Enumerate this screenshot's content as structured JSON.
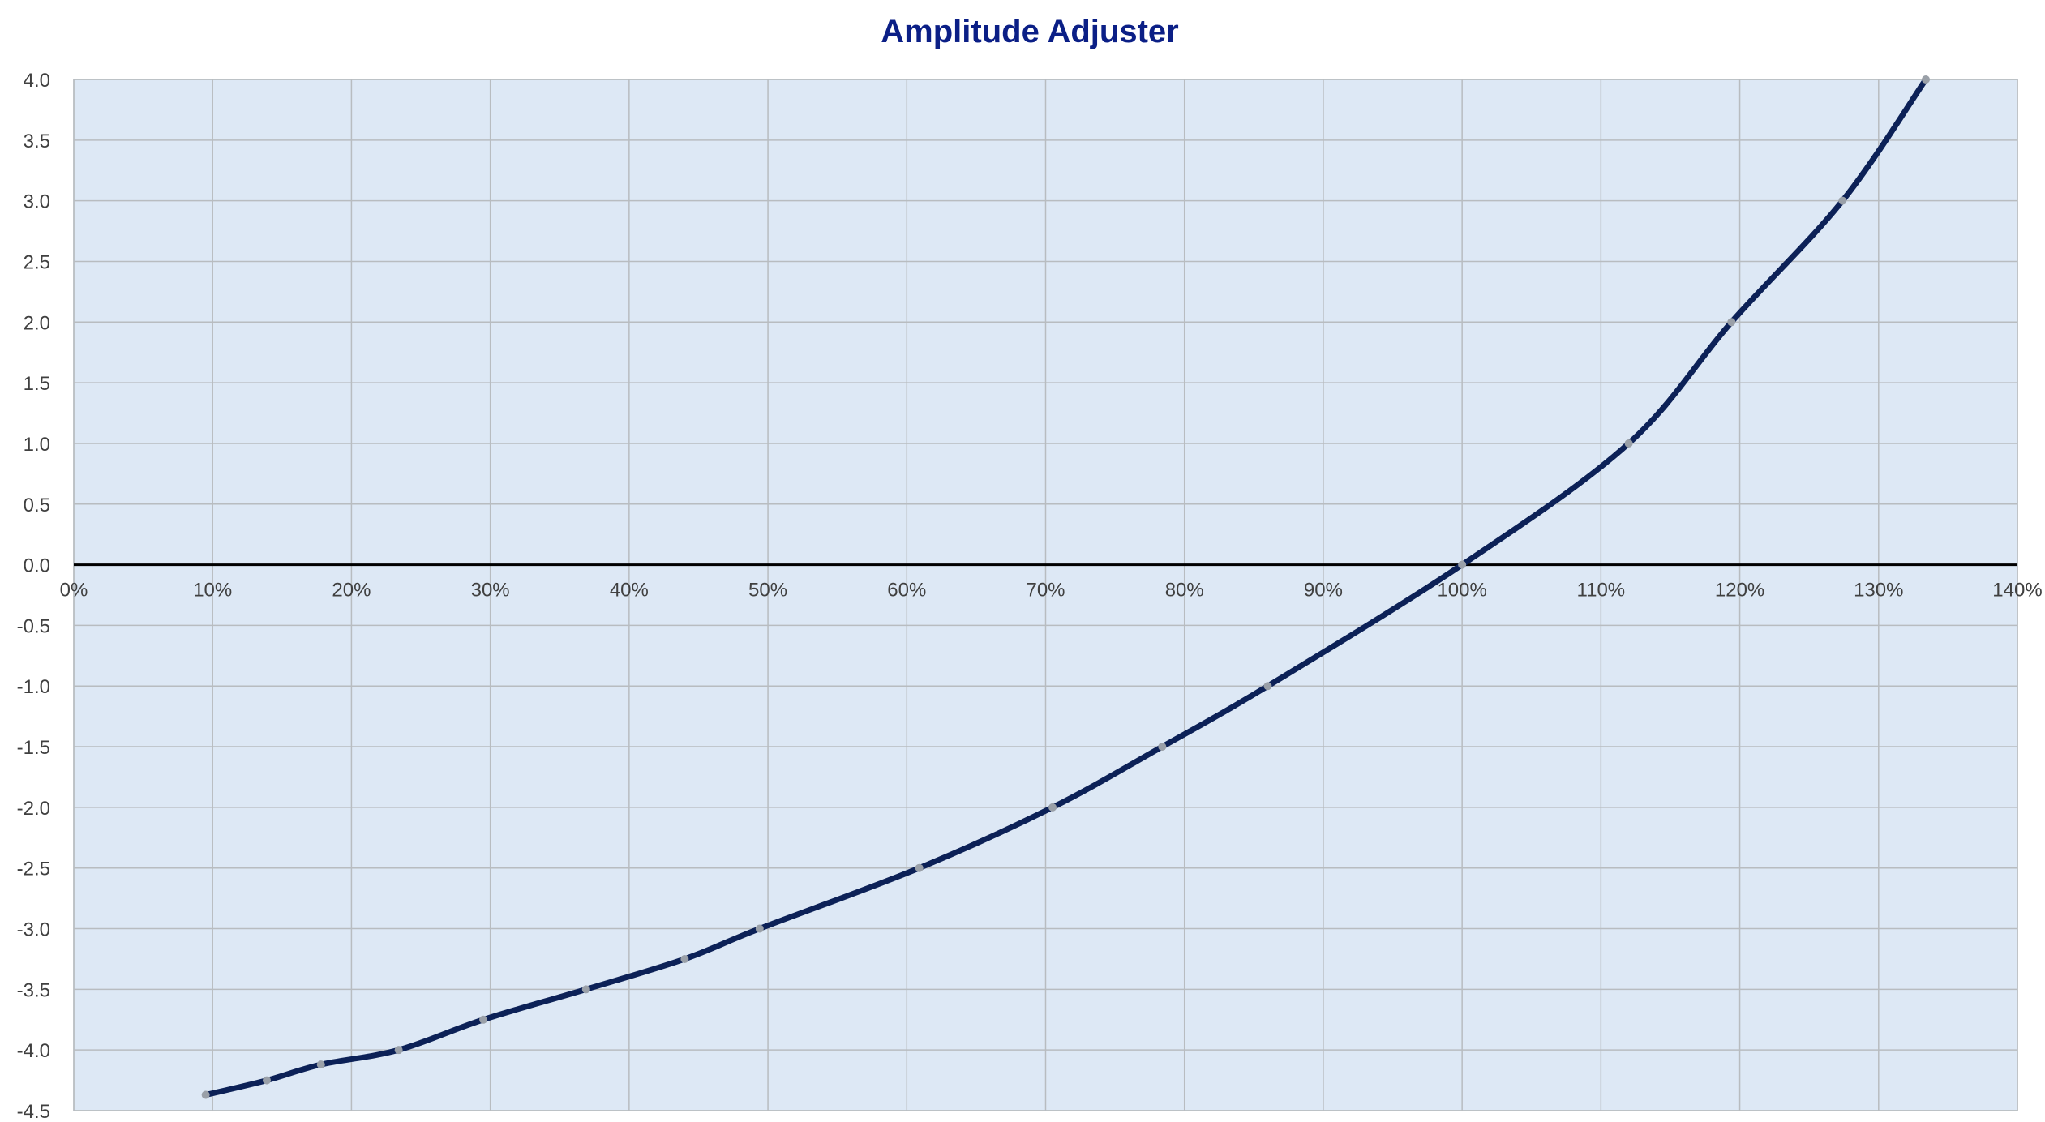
{
  "colors": {
    "title": "#0b1f86",
    "plot_background": "#dde8f5",
    "gridline": "#b8bcc0",
    "zero_axis": "#000000",
    "series_line": "#0c2157",
    "marker": "#9aa0a8",
    "tick_label": "#404040"
  },
  "chart_data": {
    "type": "line",
    "title": "Amplitude Adjuster",
    "xlabel": "",
    "ylabel": "",
    "xlim": [
      0,
      1.4
    ],
    "ylim": [
      -4.5,
      4.0
    ],
    "grid": true,
    "legend": "none",
    "smooth": true,
    "markers": true,
    "x_ticks": [
      {
        "value": 0.0,
        "label": "0%"
      },
      {
        "value": 0.1,
        "label": "10%"
      },
      {
        "value": 0.2,
        "label": "20%"
      },
      {
        "value": 0.3,
        "label": "30%"
      },
      {
        "value": 0.4,
        "label": "40%"
      },
      {
        "value": 0.5,
        "label": "50%"
      },
      {
        "value": 0.6,
        "label": "60%"
      },
      {
        "value": 0.7,
        "label": "70%"
      },
      {
        "value": 0.8,
        "label": "80%"
      },
      {
        "value": 0.9,
        "label": "90%"
      },
      {
        "value": 1.0,
        "label": "100%"
      },
      {
        "value": 1.1,
        "label": "110%"
      },
      {
        "value": 1.2,
        "label": "120%"
      },
      {
        "value": 1.3,
        "label": "130%"
      },
      {
        "value": 1.4,
        "label": "140%"
      }
    ],
    "y_ticks": [
      {
        "value": 4.0,
        "label": "4.0"
      },
      {
        "value": 3.5,
        "label": "3.5"
      },
      {
        "value": 3.0,
        "label": "3.0"
      },
      {
        "value": 2.5,
        "label": "2.5"
      },
      {
        "value": 2.0,
        "label": "2.0"
      },
      {
        "value": 1.5,
        "label": "1.5"
      },
      {
        "value": 1.0,
        "label": "1.0"
      },
      {
        "value": 0.5,
        "label": "0.5"
      },
      {
        "value": 0.0,
        "label": "0.0"
      },
      {
        "value": -0.5,
        "label": "-0.5"
      },
      {
        "value": -1.0,
        "label": "-1.0"
      },
      {
        "value": -1.5,
        "label": "-1.5"
      },
      {
        "value": -2.0,
        "label": "-2.0"
      },
      {
        "value": -2.5,
        "label": "-2.5"
      },
      {
        "value": -3.0,
        "label": "-3.0"
      },
      {
        "value": -3.5,
        "label": "-3.5"
      },
      {
        "value": -4.0,
        "label": "-4.0"
      },
      {
        "value": -4.5,
        "label": "-4.5"
      }
    ],
    "series": [
      {
        "points": [
          {
            "x": 0.095,
            "y": -4.37
          },
          {
            "x": 0.139,
            "y": -4.25
          },
          {
            "x": 0.178,
            "y": -4.12
          },
          {
            "x": 0.234,
            "y": -4.0
          },
          {
            "x": 0.295,
            "y": -3.75
          },
          {
            "x": 0.369,
            "y": -3.5
          },
          {
            "x": 0.44,
            "y": -3.25
          },
          {
            "x": 0.494,
            "y": -3.0
          },
          {
            "x": 0.609,
            "y": -2.5
          },
          {
            "x": 0.705,
            "y": -2.0
          },
          {
            "x": 0.784,
            "y": -1.5
          },
          {
            "x": 0.86,
            "y": -1.0
          },
          {
            "x": 1.0,
            "y": 0.0
          },
          {
            "x": 1.12,
            "y": 1.0
          },
          {
            "x": 1.194,
            "y": 2.0
          },
          {
            "x": 1.274,
            "y": 3.0
          },
          {
            "x": 1.334,
            "y": 4.0
          }
        ]
      }
    ]
  }
}
